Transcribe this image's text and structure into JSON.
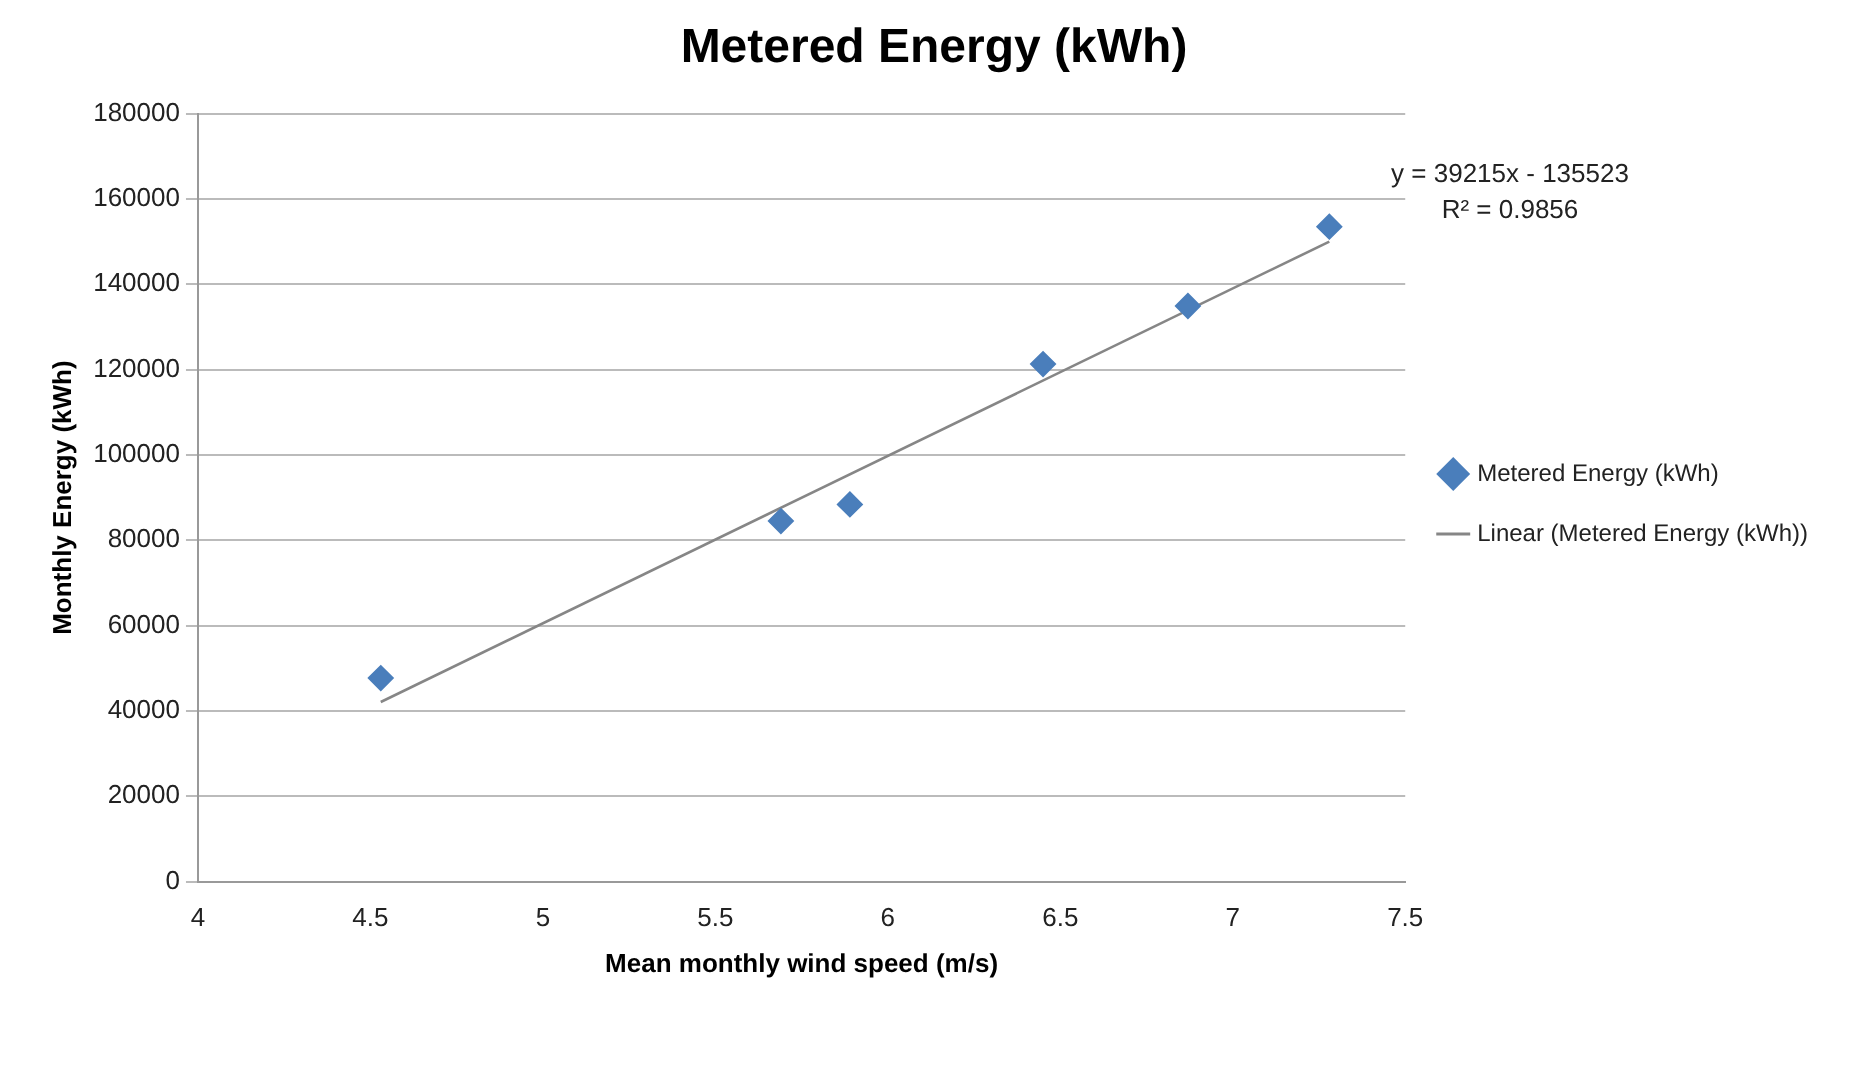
{
  "chart_data": {
    "type": "scatter",
    "title": "Metered Energy (kWh)",
    "xlabel": "Mean monthly wind speed (m/s)",
    "ylabel": "Monthly Energy (kWh)",
    "series": [
      {
        "name": "Metered Energy (kWh)",
        "color": "#4a7ebb",
        "marker": "diamond",
        "x": [
          4.53,
          5.69,
          5.89,
          6.45,
          6.87,
          7.28
        ],
        "values": [
          47700,
          84500,
          88400,
          121300,
          134900,
          153500
        ]
      },
      {
        "name": "Linear (Metered Energy (kWh))",
        "type": "line",
        "color": "#868686",
        "marker": "none",
        "x": [
          4.53,
          7.28
        ],
        "values": [
          42100,
          150000
        ]
      }
    ],
    "xlim": [
      4,
      7.5
    ],
    "xticks": [
      4,
      4.5,
      5,
      5.5,
      6,
      6.5,
      7,
      7.5
    ],
    "ylim": [
      0,
      180000
    ],
    "yticks": [
      0,
      20000,
      40000,
      60000,
      80000,
      100000,
      120000,
      140000,
      160000,
      180000
    ],
    "grid": "y",
    "legend": "right",
    "annotations": [
      "y = 39215x - 135523",
      "R² = 0.9856"
    ]
  }
}
